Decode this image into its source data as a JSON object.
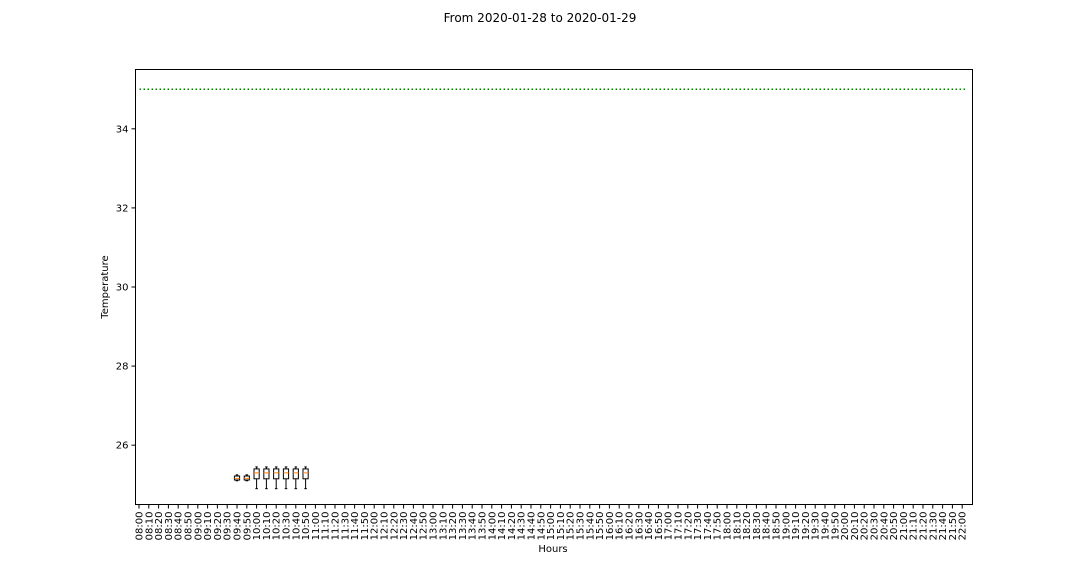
{
  "chart_data": {
    "type": "box",
    "title": "From 2020-01-28 to 2020-01-29",
    "xlabel": "Hours",
    "ylabel": "Temperature",
    "ylim": [
      24.5,
      35.5
    ],
    "yticks": [
      26,
      28,
      30,
      32,
      34
    ],
    "grid": false,
    "categories": [
      "08:00",
      "08:10",
      "08:20",
      "08:30",
      "08:40",
      "08:50",
      "09:00",
      "09:10",
      "09:20",
      "09:30",
      "09:40",
      "09:50",
      "10:00",
      "10:10",
      "10:20",
      "10:30",
      "10:40",
      "10:50",
      "11:00",
      "11:10",
      "11:20",
      "11:30",
      "11:40",
      "11:50",
      "12:00",
      "12:10",
      "12:20",
      "12:30",
      "12:40",
      "12:50",
      "13:00",
      "13:10",
      "13:20",
      "13:30",
      "13:40",
      "13:50",
      "14:00",
      "14:10",
      "14:20",
      "14:30",
      "14:40",
      "14:50",
      "15:00",
      "15:10",
      "15:20",
      "15:30",
      "15:40",
      "15:50",
      "16:00",
      "16:10",
      "16:20",
      "16:30",
      "16:40",
      "16:50",
      "17:00",
      "17:10",
      "17:20",
      "17:30",
      "17:40",
      "17:50",
      "18:00",
      "18:10",
      "18:20",
      "18:30",
      "18:40",
      "18:50",
      "19:00",
      "19:10",
      "19:20",
      "19:30",
      "19:40",
      "19:50",
      "20:00",
      "20:10",
      "20:20",
      "20:30",
      "20:40",
      "20:50",
      "21:00",
      "21:10",
      "21:20",
      "21:30",
      "21:40",
      "21:50",
      "22:00"
    ],
    "boxes": [
      {
        "x": "09:40",
        "whisker_low": 25.1,
        "q1": 25.12,
        "median": 25.16,
        "q3": 25.22,
        "whisker_high": 25.25
      },
      {
        "x": "09:50",
        "whisker_low": 25.1,
        "q1": 25.12,
        "median": 25.16,
        "q3": 25.22,
        "whisker_high": 25.25
      },
      {
        "x": "10:00",
        "whisker_low": 24.9,
        "q1": 25.15,
        "median": 25.3,
        "q3": 25.4,
        "whisker_high": 25.45
      },
      {
        "x": "10:10",
        "whisker_low": 24.9,
        "q1": 25.15,
        "median": 25.3,
        "q3": 25.4,
        "whisker_high": 25.45
      },
      {
        "x": "10:20",
        "whisker_low": 24.9,
        "q1": 25.15,
        "median": 25.3,
        "q3": 25.4,
        "whisker_high": 25.45
      },
      {
        "x": "10:30",
        "whisker_low": 24.9,
        "q1": 25.15,
        "median": 25.3,
        "q3": 25.4,
        "whisker_high": 25.45
      },
      {
        "x": "10:40",
        "whisker_low": 24.9,
        "q1": 25.15,
        "median": 25.3,
        "q3": 25.4,
        "whisker_high": 25.45
      },
      {
        "x": "10:50",
        "whisker_low": 24.9,
        "q1": 25.15,
        "median": 25.3,
        "q3": 25.4,
        "whisker_high": 25.45
      }
    ],
    "threshold": {
      "y": 35,
      "color": "#008000",
      "style": "dotted"
    },
    "colors": {
      "box": "#000000",
      "median": "#ff7f0e"
    }
  }
}
